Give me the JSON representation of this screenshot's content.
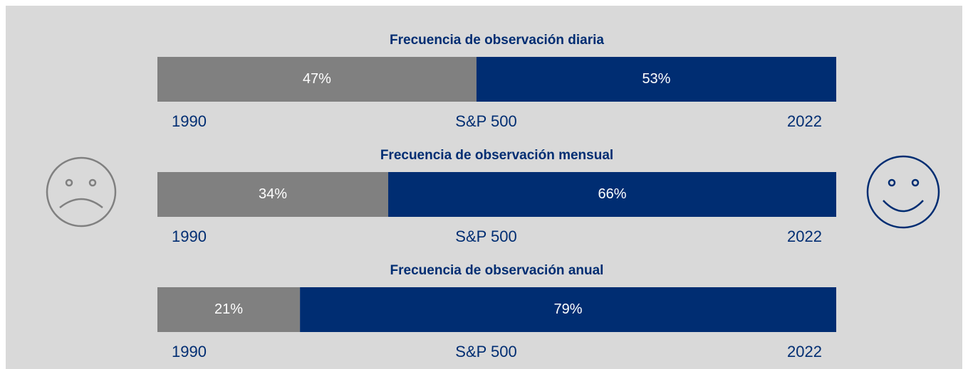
{
  "chart_data": [
    {
      "type": "stacked-bar",
      "orientation": "horizontal",
      "title": "Frecuencia de observación diaria",
      "values": [
        47,
        53
      ],
      "value_labels": [
        "47%",
        "53%"
      ],
      "colors": [
        "#808080",
        "#002d72"
      ],
      "xlim": [
        0,
        100
      ],
      "start_label": "1990",
      "center_label": "S&P 500",
      "end_label": "2022"
    },
    {
      "type": "stacked-bar",
      "orientation": "horizontal",
      "title": "Frecuencia de observación mensual",
      "values": [
        34,
        66
      ],
      "value_labels": [
        "34%",
        "66%"
      ],
      "colors": [
        "#808080",
        "#002d72"
      ],
      "xlim": [
        0,
        100
      ],
      "start_label": "1990",
      "center_label": "S&P 500",
      "end_label": "2022"
    },
    {
      "type": "stacked-bar",
      "orientation": "horizontal",
      "title": "Frecuencia de observación anual",
      "values": [
        21,
        79
      ],
      "value_labels": [
        "21%",
        "79%"
      ],
      "colors": [
        "#808080",
        "#002d72"
      ],
      "xlim": [
        0,
        100
      ],
      "start_label": "1990",
      "center_label": "S&P 500",
      "end_label": "2022"
    }
  ]
}
